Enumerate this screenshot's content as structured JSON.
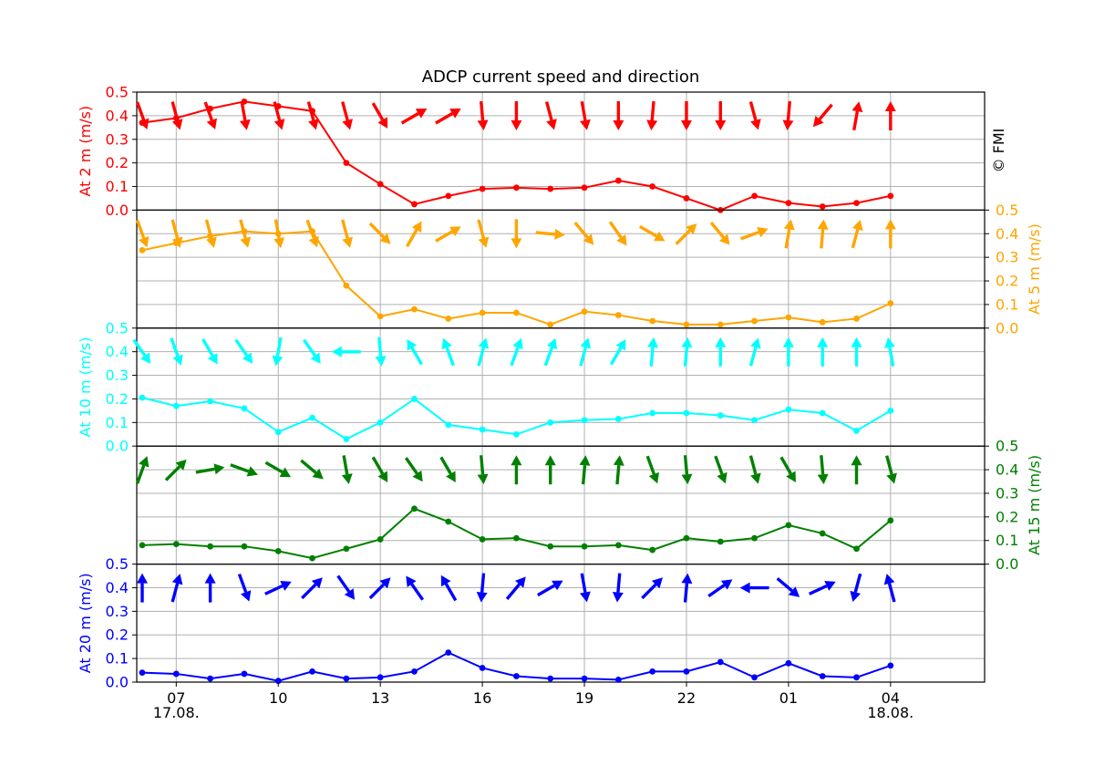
{
  "chart_data": {
    "type": "line",
    "title": "ADCP current speed and direction",
    "credit": "© FMI",
    "x": [
      "06:00",
      "07:00",
      "08:00",
      "09:00",
      "10:00",
      "11:00",
      "12:00",
      "13:00",
      "14:00",
      "15:00",
      "16:00",
      "17:00",
      "18:00",
      "19:00",
      "20:00",
      "21:00",
      "22:00",
      "23:00",
      "00:00",
      "01:00",
      "02:00",
      "03:00",
      "04:00"
    ],
    "xlim": [
      "05:20",
      "06:10 (+1 day)"
    ],
    "x_ticks": [
      "07",
      "10",
      "13",
      "16",
      "19",
      "22",
      "01",
      "04"
    ],
    "x_date_labels": [
      {
        "at": "07",
        "text": "17.08."
      },
      {
        "at": "04",
        "text": "18.08."
      }
    ],
    "y_ticks": [
      "0.0",
      "0.1",
      "0.2",
      "0.3",
      "0.4",
      "0.5"
    ],
    "ylim": [
      0,
      0.5
    ],
    "grid": true,
    "series": [
      {
        "name": "At 2 m (m/s)",
        "color": "#ff0000",
        "axis_side": "left",
        "values": [
          0.37,
          0.39,
          0.43,
          0.46,
          0.44,
          0.42,
          0.2,
          0.11,
          0.025,
          0.06,
          0.09,
          0.095,
          0.09,
          0.095,
          0.125,
          0.1,
          0.05,
          0.0,
          0.06,
          0.03,
          0.015,
          0.03,
          0.06
        ],
        "direction_deg": [
          160,
          165,
          160,
          170,
          165,
          165,
          165,
          150,
          60,
          60,
          175,
          180,
          165,
          170,
          180,
          185,
          180,
          180,
          165,
          185,
          220,
          10,
          0
        ]
      },
      {
        "name": "At 5 m (m/s)",
        "color": "#ffa500",
        "axis_side": "right",
        "values": [
          0.33,
          0.36,
          0.39,
          0.41,
          0.4,
          0.41,
          0.18,
          0.05,
          0.08,
          0.04,
          0.065,
          0.065,
          0.015,
          0.07,
          0.055,
          0.03,
          0.015,
          0.015,
          0.03,
          0.045,
          0.025,
          0.04,
          0.105
        ],
        "direction_deg": [
          160,
          165,
          165,
          165,
          170,
          160,
          165,
          135,
          30,
          60,
          165,
          180,
          95,
          140,
          145,
          120,
          45,
          140,
          70,
          10,
          5,
          15,
          0
        ]
      },
      {
        "name": "At 10 m (m/s)",
        "color": "#00ffff",
        "axis_side": "left",
        "values": [
          0.205,
          0.17,
          0.19,
          0.16,
          0.06,
          0.12,
          0.03,
          0.1,
          0.2,
          0.09,
          0.07,
          0.05,
          0.1,
          0.11,
          0.115,
          0.14,
          0.14,
          0.13,
          0.11,
          0.155,
          0.14,
          0.065,
          0.15
        ],
        "direction_deg": [
          145,
          160,
          150,
          145,
          190,
          145,
          270,
          175,
          330,
          340,
          15,
          20,
          20,
          15,
          30,
          5,
          5,
          0,
          15,
          0,
          0,
          0,
          350
        ],
        "note": "directions read approximately from arrow glyphs"
      },
      {
        "name": "At 15 m (m/s)",
        "color": "#008000",
        "axis_side": "right",
        "values": [
          0.08,
          0.085,
          0.075,
          0.075,
          0.055,
          0.025,
          0.065,
          0.105,
          0.235,
          0.18,
          0.105,
          0.11,
          0.075,
          0.075,
          0.08,
          0.06,
          0.11,
          0.095,
          0.11,
          0.165,
          0.13,
          0.065,
          0.185
        ],
        "direction_deg": [
          20,
          45,
          80,
          110,
          120,
          130,
          170,
          150,
          145,
          150,
          175,
          0,
          0,
          5,
          5,
          160,
          175,
          160,
          165,
          150,
          175,
          0,
          165
        ]
      },
      {
        "name": "At 20 m (m/s)",
        "color": "#0000ff",
        "axis_side": "left",
        "values": [
          0.04,
          0.035,
          0.015,
          0.035,
          0.005,
          0.045,
          0.015,
          0.02,
          0.045,
          0.125,
          0.06,
          0.025,
          0.015,
          0.015,
          0.01,
          0.045,
          0.045,
          0.085,
          0.02,
          0.08,
          0.025,
          0.02,
          0.07
        ],
        "direction_deg": [
          0,
          15,
          0,
          160,
          65,
          45,
          145,
          45,
          325,
          330,
          185,
          40,
          60,
          170,
          185,
          45,
          5,
          55,
          270,
          130,
          65,
          195,
          345
        ]
      }
    ]
  }
}
